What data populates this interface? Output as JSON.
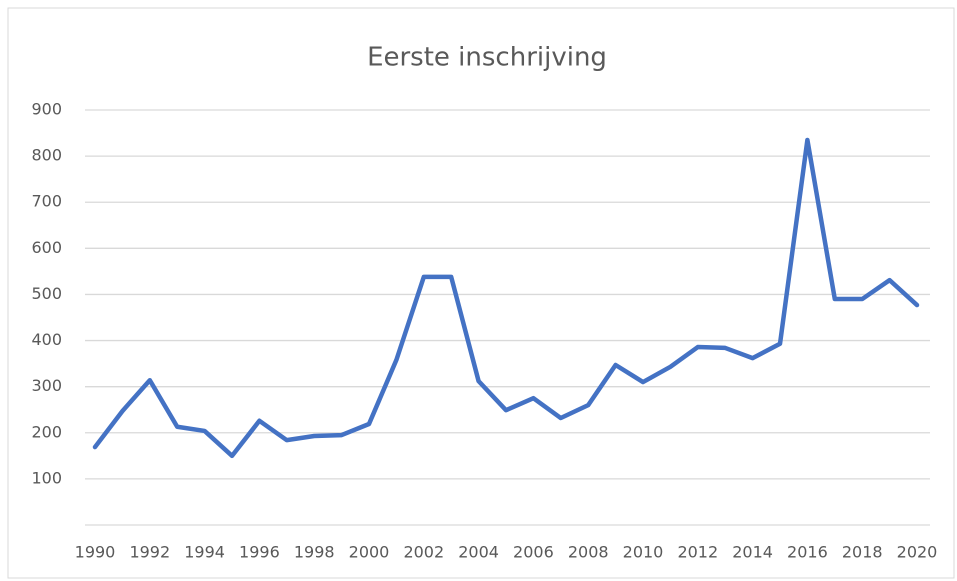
{
  "chart_data": {
    "type": "line",
    "title": "Eerste inschrijving",
    "x": [
      1990,
      1991,
      1992,
      1993,
      1994,
      1995,
      1996,
      1997,
      1998,
      1999,
      2000,
      2001,
      2002,
      2003,
      2004,
      2005,
      2006,
      2007,
      2008,
      2009,
      2010,
      2011,
      2012,
      2013,
      2014,
      2015,
      2016,
      2017,
      2018,
      2019,
      2020
    ],
    "series": [
      {
        "name": "Eerste inschrijving",
        "color": "#4472c4",
        "values": [
          169,
          247,
          314,
          213,
          204,
          150,
          226,
          184,
          193,
          195,
          219,
          358,
          538,
          538,
          312,
          249,
          275,
          232,
          260,
          347,
          310,
          343,
          386,
          384,
          362,
          393,
          835,
          490,
          490,
          531,
          477
        ]
      }
    ],
    "xlim": [
      1990,
      2020
    ],
    "xticks": [
      1990,
      1992,
      1994,
      1996,
      1998,
      2000,
      2002,
      2004,
      2006,
      2008,
      2010,
      2012,
      2014,
      2016,
      2018,
      2020
    ],
    "ylim": [
      0,
      900
    ],
    "yticks": [
      100,
      200,
      300,
      400,
      500,
      600,
      700,
      800,
      900
    ],
    "grid": true
  }
}
